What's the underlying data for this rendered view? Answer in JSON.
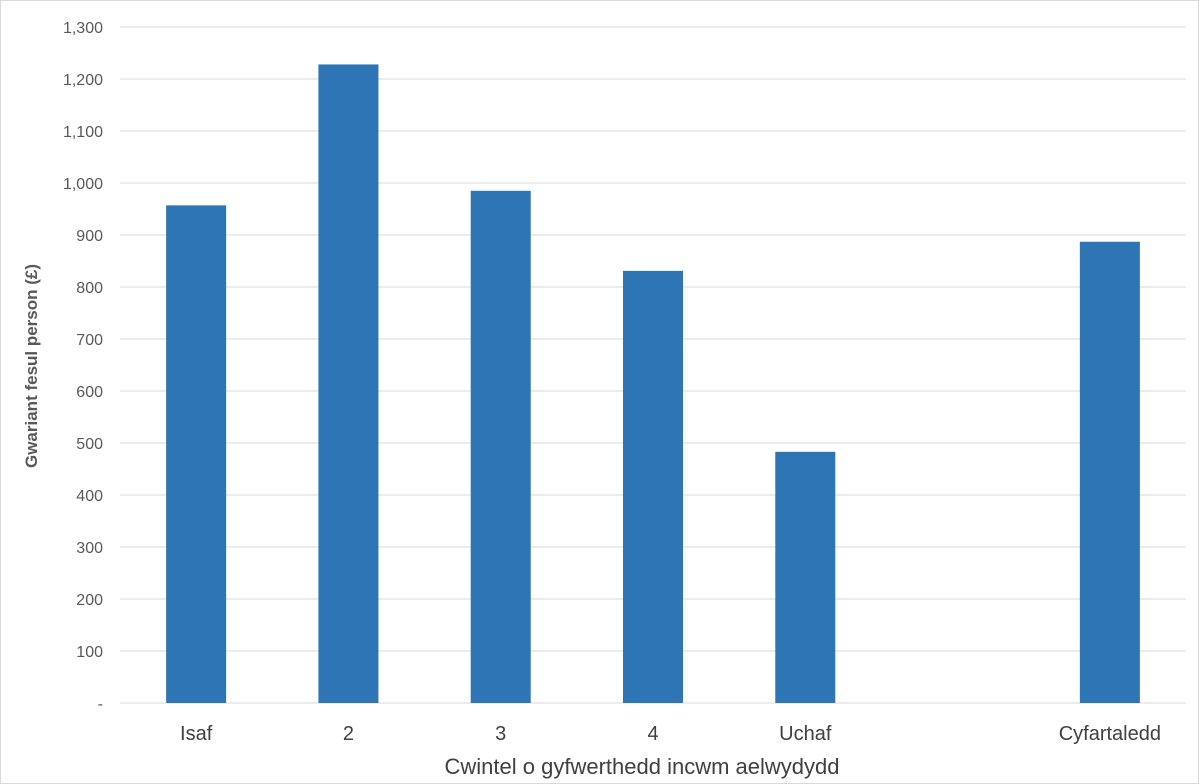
{
  "chart_data": {
    "type": "bar",
    "categories": [
      "Isaf",
      "2",
      "3",
      "4",
      "Uchaf",
      "",
      "Cyfartaledd"
    ],
    "values": [
      957,
      1228,
      985,
      831,
      483,
      null,
      887
    ],
    "ylabel": "Gwariant fesul person (£)",
    "xlabel": "Cwintel o gyfwerthedd incwm aelwydydd",
    "ylim": [
      0,
      1300
    ],
    "yticks": [
      0,
      100,
      200,
      300,
      400,
      500,
      600,
      700,
      800,
      900,
      1000,
      1100,
      1200,
      1300
    ],
    "ytick_labels": [
      "-",
      "100",
      "200",
      "300",
      "400",
      "500",
      "600",
      "700",
      "800",
      "900",
      "1,000",
      "1,100",
      "1,200",
      "1,300"
    ],
    "grid": true,
    "legend": "none",
    "bar_color": "#2e75b6",
    "grid_color": "#d9d9d9"
  }
}
